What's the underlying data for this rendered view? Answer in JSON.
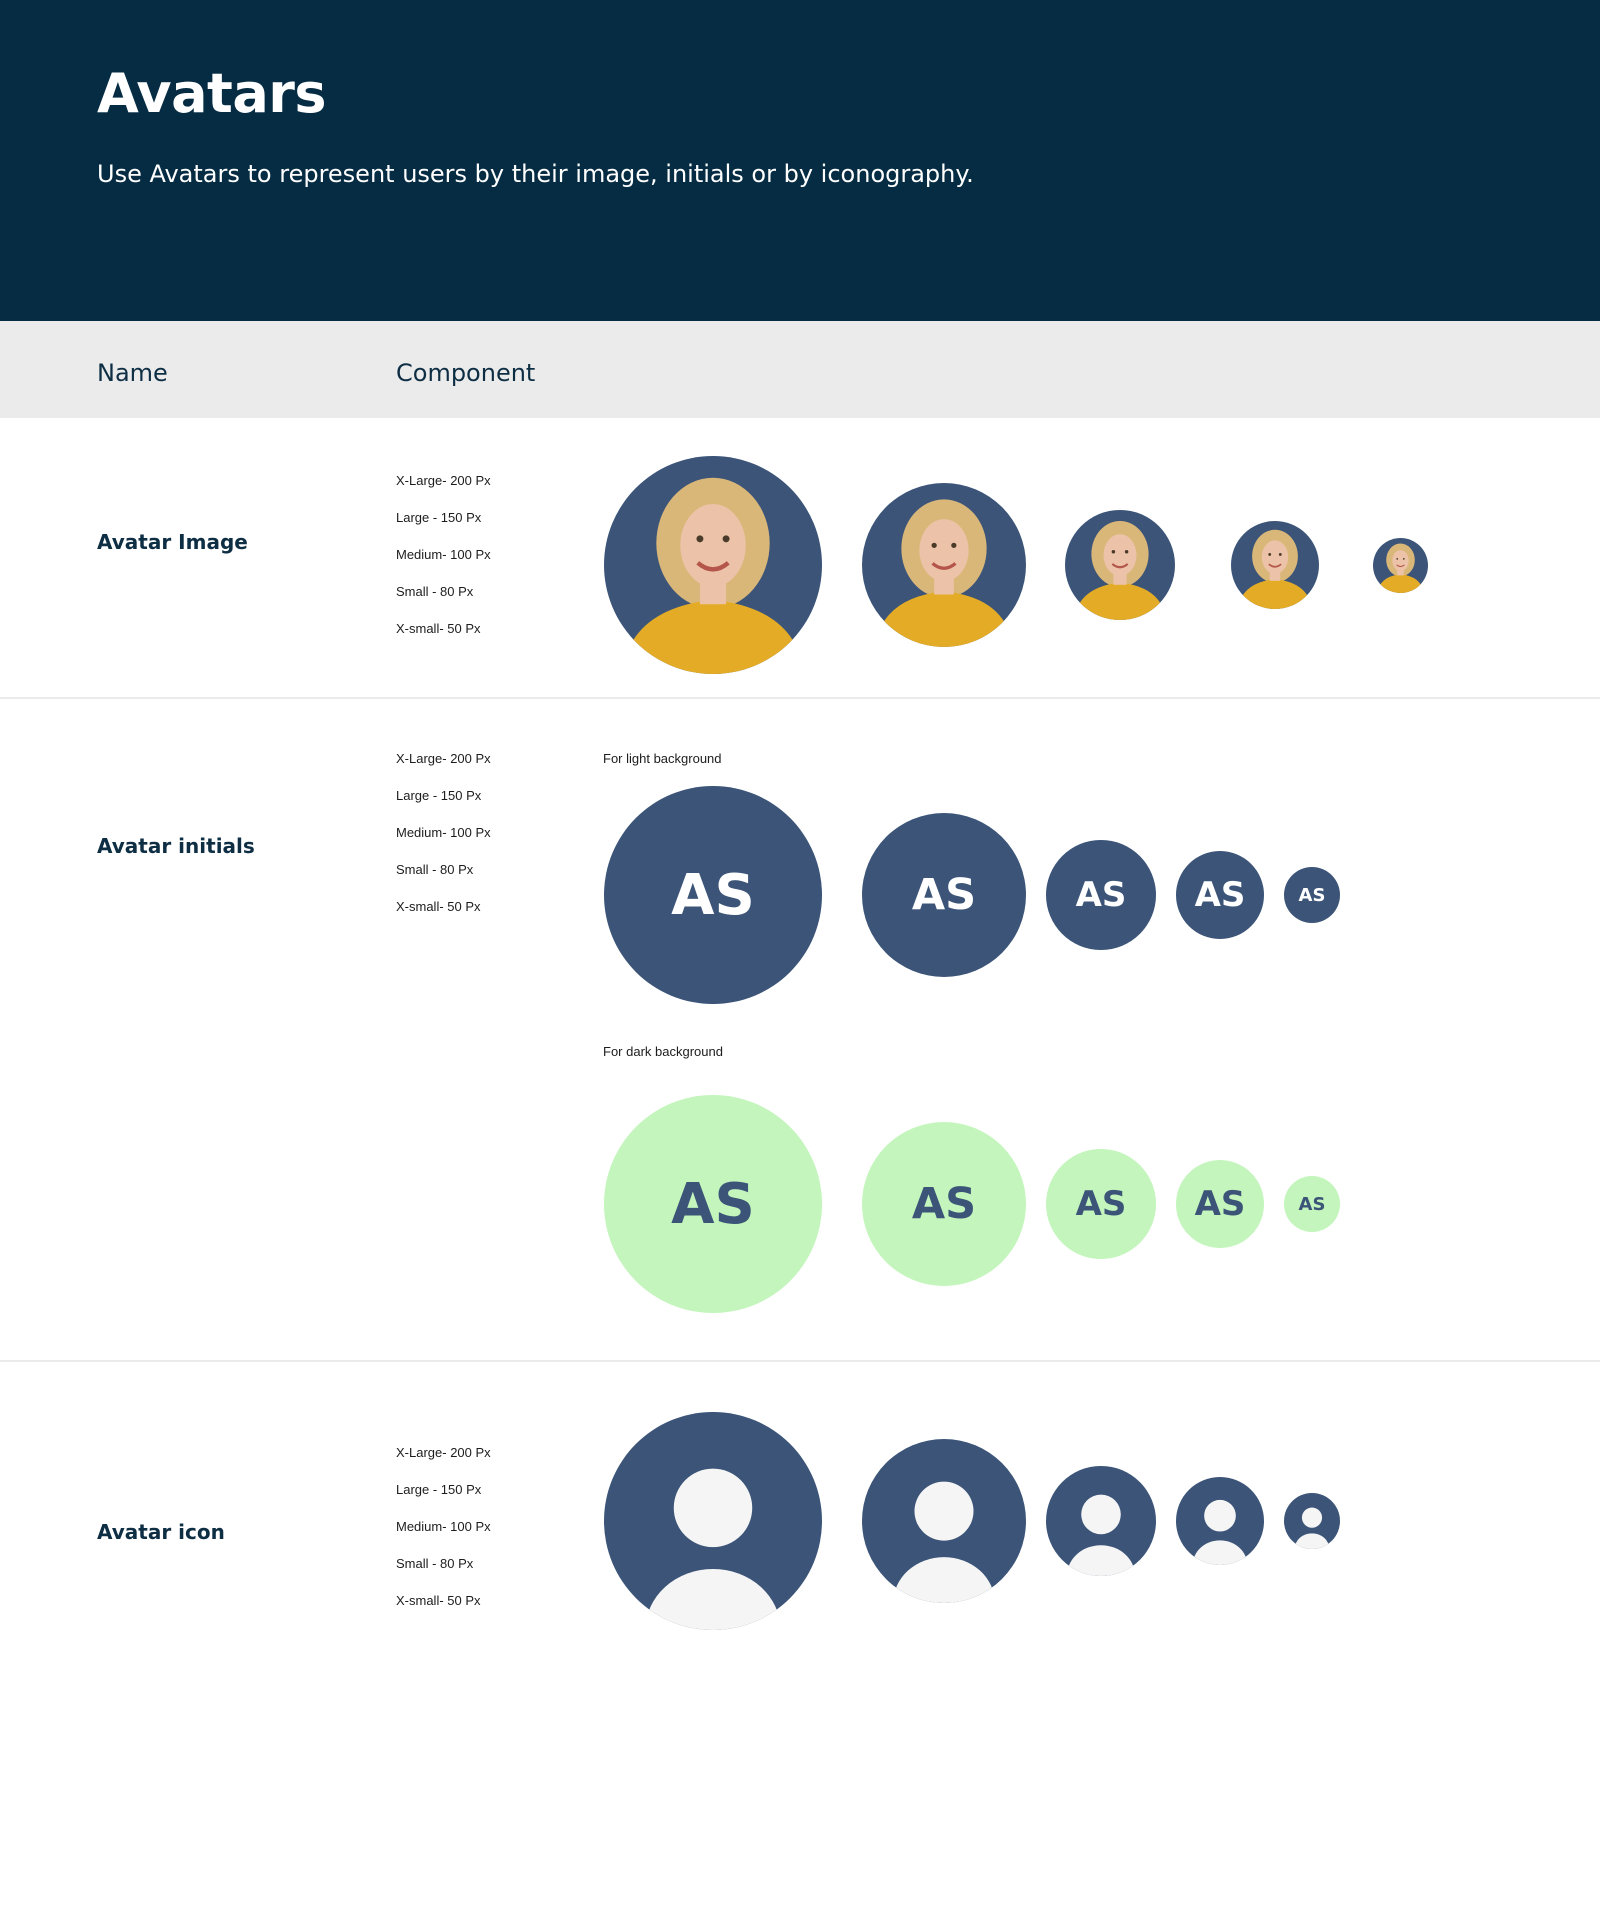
{
  "header": {
    "title": "Avatars",
    "subtitle": "Use Avatars to represent users by their image, initials or by iconography."
  },
  "columns": {
    "name": "Name",
    "component": "Component"
  },
  "sizes": [
    "X-Large- 200 Px",
    "Large - 150 Px",
    "Medium- 100 Px",
    "Small - 80 Px",
    "X-small- 50 Px"
  ],
  "avatar_image": {
    "name": "Avatar Image",
    "sizes": [
      "X-Large- 200 Px",
      "Large - 150 Px",
      "Medium- 100 Px",
      "Small - 80 Px",
      "X-small- 50 Px"
    ]
  },
  "avatar_initials": {
    "name": "Avatar initials",
    "sizes": [
      "X-Large- 200 Px",
      "Large - 150 Px",
      "Medium- 100 Px",
      "Small - 80 Px",
      "X-small- 50 Px"
    ],
    "light_caption": "For light background",
    "dark_caption": "For dark background",
    "initials": "AS"
  },
  "avatar_icon": {
    "name": "Avatar icon",
    "sizes": [
      "X-Large- 200 Px",
      "Large - 150 Px",
      "Medium- 100 Px",
      "Small - 80 Px",
      "X-small- 50 Px"
    ]
  },
  "colors": {
    "header_bg": "#052c43",
    "avatar_navy": "#3b5478",
    "avatar_mint": "#c3f5bc",
    "icon_fill": "#f5f5f5",
    "hair": "#d9b779",
    "shirt": "#e4ac26",
    "skin": "#ecc3a8"
  }
}
